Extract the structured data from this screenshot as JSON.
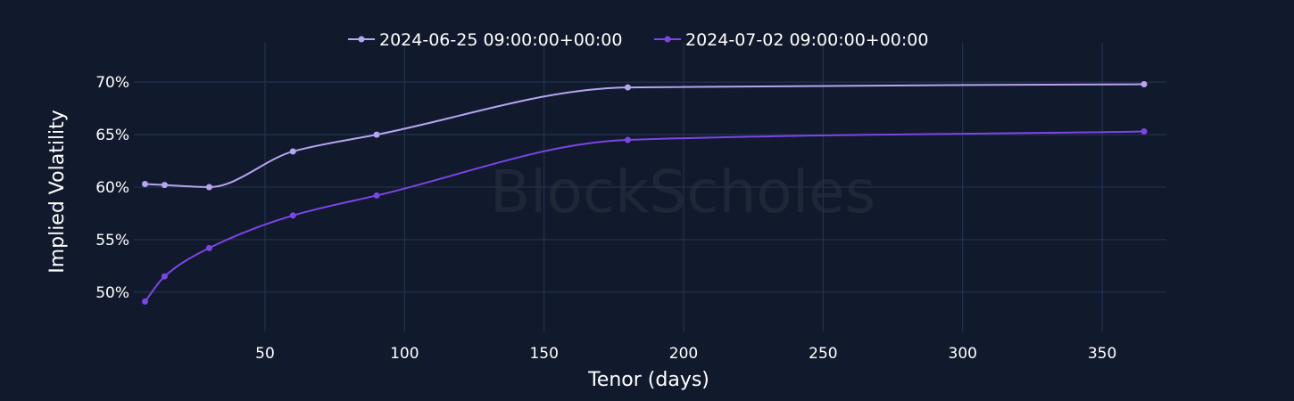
{
  "chart_data": {
    "type": "line",
    "xlabel": "Tenor (days)",
    "ylabel": "Implied Volatility",
    "watermark": "BlockScholes",
    "xlim": [
      3,
      373
    ],
    "ylim": [
      0.4625,
      0.7375
    ],
    "x_ticks": [
      50,
      100,
      150,
      200,
      250,
      300,
      350
    ],
    "x_tick_labels": [
      "50",
      "100",
      "150",
      "200",
      "250",
      "300",
      "350"
    ],
    "y_ticks": [
      0.5,
      0.55,
      0.6,
      0.65,
      0.7
    ],
    "y_tick_labels": [
      "50%",
      "55%",
      "60%",
      "65%",
      "70%"
    ],
    "grid": true,
    "legend_position": "top",
    "series": [
      {
        "name": "2024-06-25 09:00:00+00:00",
        "color": "#b8a4f0",
        "x": [
          7,
          14,
          30,
          60,
          90,
          180,
          365
        ],
        "y": [
          0.603,
          0.602,
          0.6,
          0.634,
          0.65,
          0.695,
          0.698
        ]
      },
      {
        "name": "2024-07-02 09:00:00+00:00",
        "color": "#7c45e6",
        "x": [
          7,
          14,
          30,
          60,
          90,
          180,
          365
        ],
        "y": [
          0.491,
          0.515,
          0.542,
          0.573,
          0.592,
          0.645,
          0.653
        ]
      }
    ]
  }
}
